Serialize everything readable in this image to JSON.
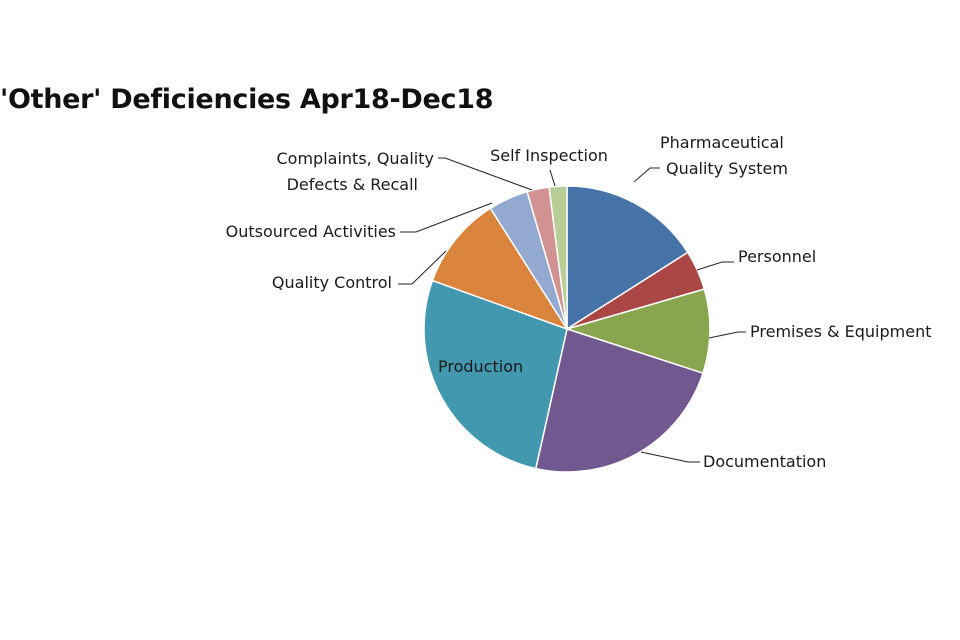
{
  "chart_data": {
    "type": "pie",
    "title": "'Other' Deficiencies Apr18-Dec18",
    "slices": [
      {
        "label": "Pharmaceutical\nQuality System",
        "value": 16,
        "color": "#4572a7"
      },
      {
        "label": "Personnel",
        "value": 4.5,
        "color": "#aa4643"
      },
      {
        "label": "Premises & Equipment",
        "value": 9.5,
        "color": "#89a54e"
      },
      {
        "label": "Documentation",
        "value": 23.5,
        "color": "#71588f"
      },
      {
        "label": "Production",
        "value": 27,
        "color": "#4198af"
      },
      {
        "label": "Quality Control",
        "value": 10.5,
        "color": "#db843d"
      },
      {
        "label": "Outsourced Activities",
        "value": 4.5,
        "color": "#93a9cf"
      },
      {
        "label": "Complaints, Quality\nDefects & Recall",
        "value": 2.5,
        "color": "#d19392"
      },
      {
        "label": "Self Inspection",
        "value": 2,
        "color": "#b9cd96"
      }
    ],
    "legend": "none"
  }
}
